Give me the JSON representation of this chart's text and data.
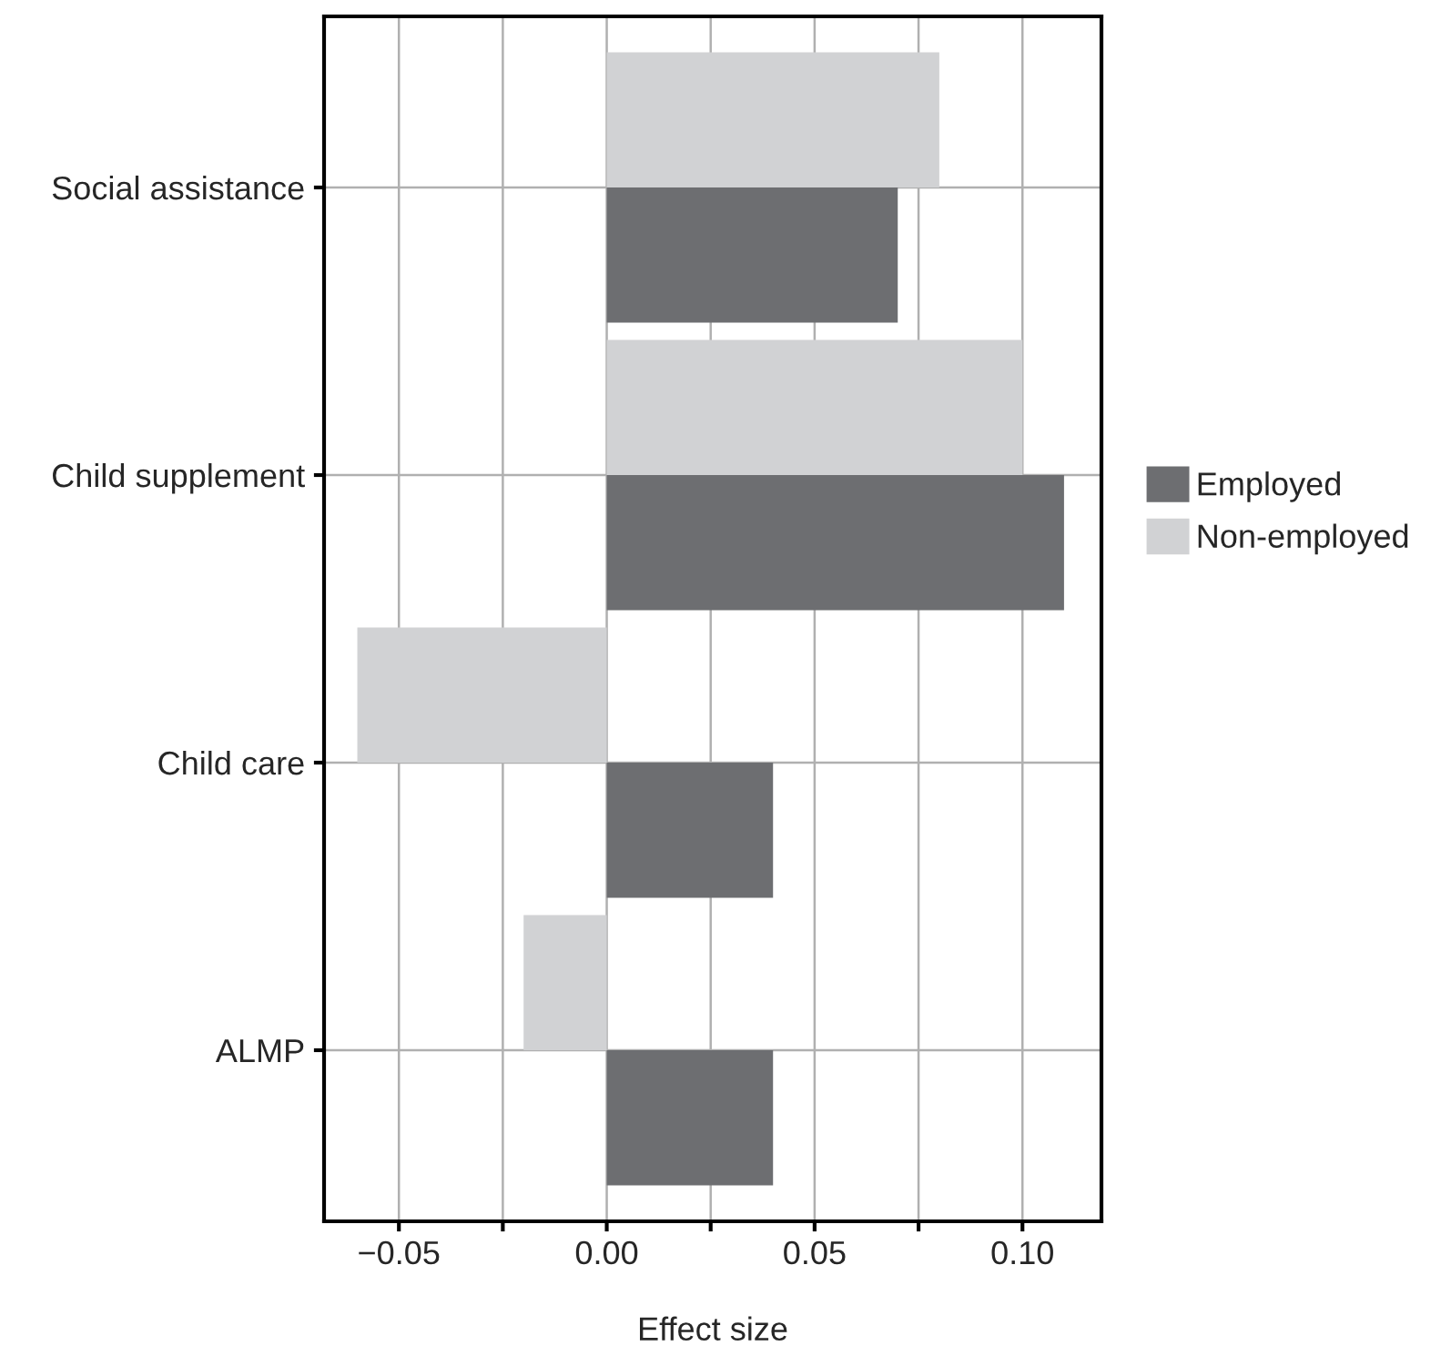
{
  "chart_data": {
    "type": "bar",
    "orientation": "horizontal",
    "xlabel": "Effect size",
    "categories": [
      "Social assistance",
      "Child supplement",
      "Child care",
      "ALMP"
    ],
    "series": [
      {
        "name": "Employed",
        "color": "#6d6e71",
        "values": [
          0.07,
          0.11,
          0.04,
          0.04
        ]
      },
      {
        "name": "Non-employed",
        "color": "#d1d2d4",
        "values": [
          0.08,
          0.1,
          -0.06,
          -0.02
        ]
      }
    ],
    "xlim": [
      -0.068,
      0.119
    ],
    "xticks": [
      {
        "value": -0.05,
        "label": "−0.05"
      },
      {
        "value": -0.025,
        "label": null
      },
      {
        "value": 0.0,
        "label": "0.00"
      },
      {
        "value": 0.025,
        "label": null
      },
      0.05,
      {
        "value": 0.075,
        "label": null
      },
      {
        "value": 0.1,
        "label": "0.10"
      }
    ],
    "grid": true,
    "legend": "right"
  }
}
